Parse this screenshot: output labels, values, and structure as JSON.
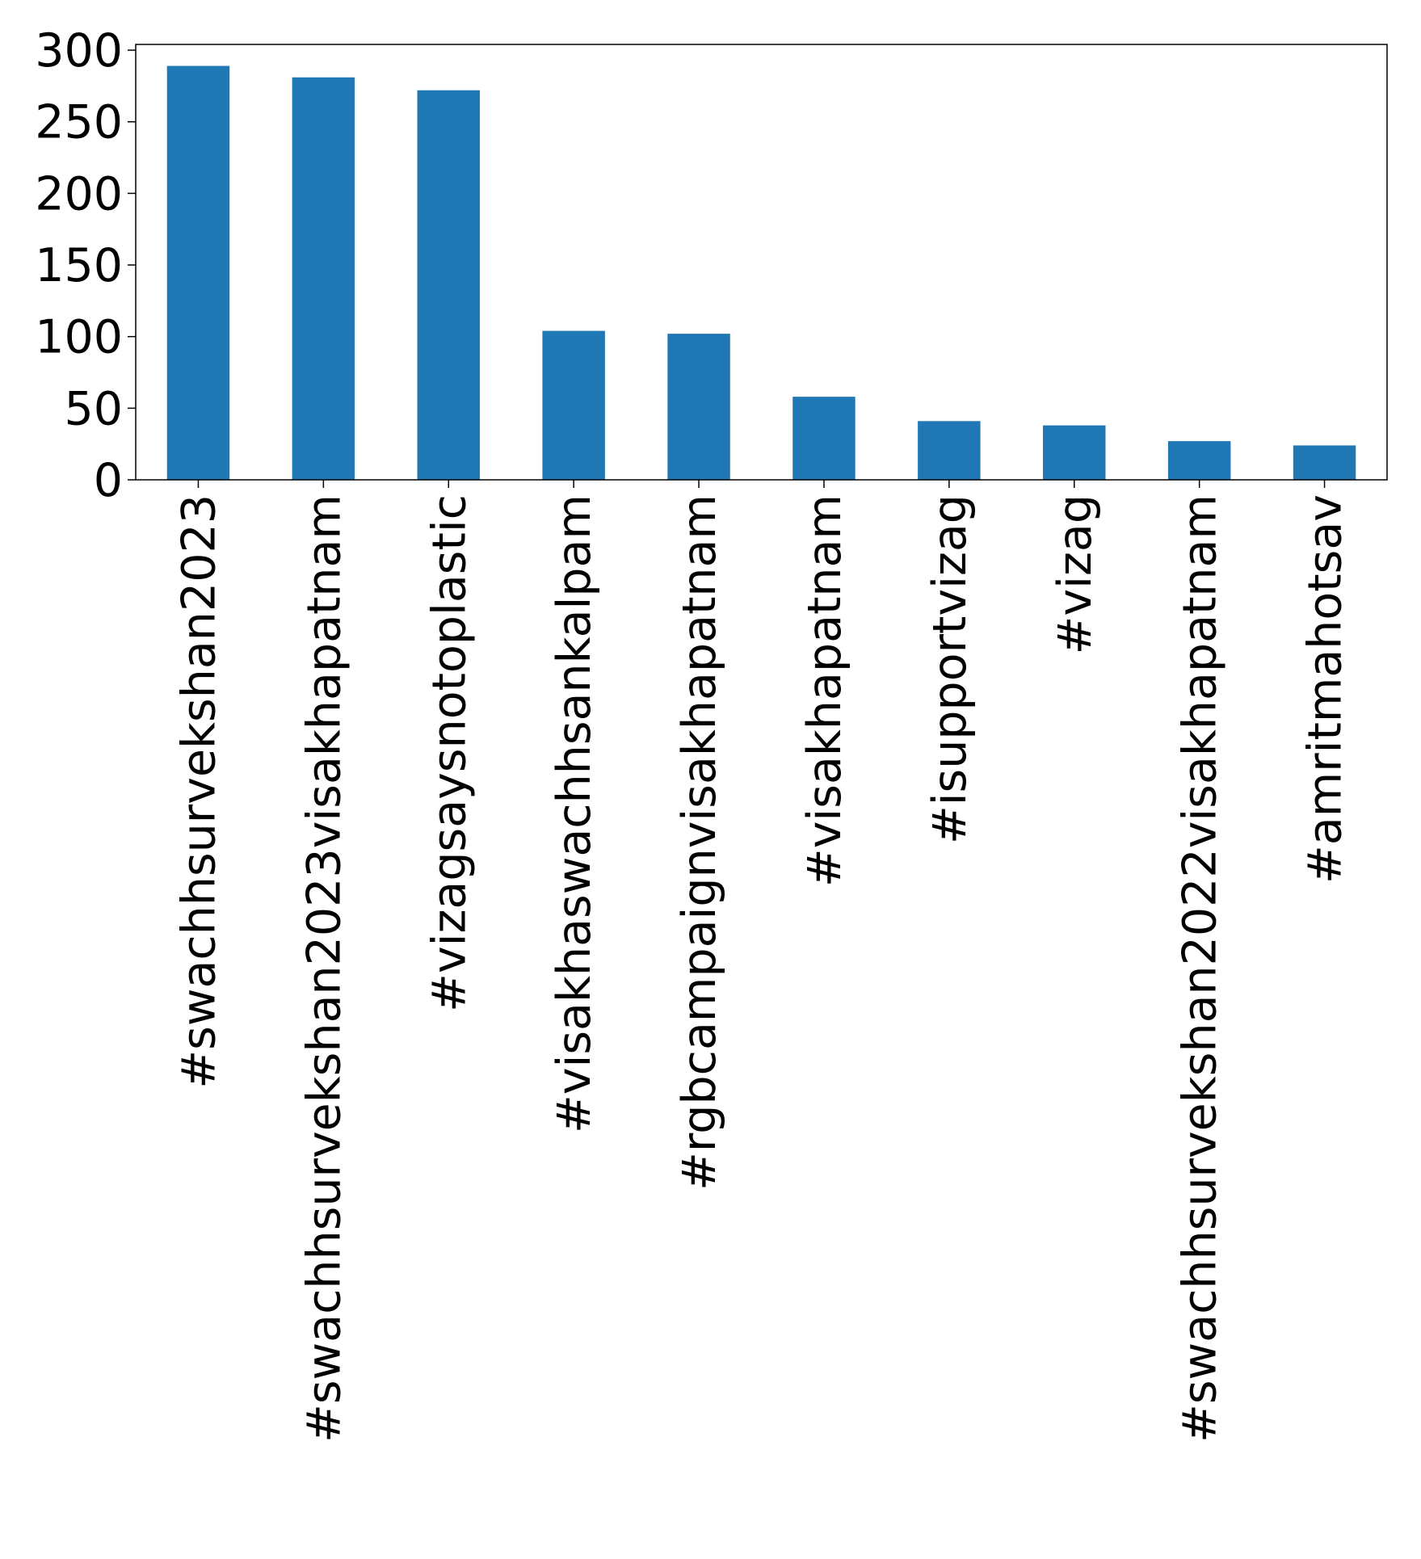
{
  "chart_data": {
    "type": "bar",
    "categories": [
      "#swachhsurvekshan2023",
      "#swachhsurvekshan2023visakhapatnam",
      "#vizagsaysnotoplastic",
      "#visakhaswachhsankalpam",
      "#rgbcampaignvisakhapatnam",
      "#visakhapatnam",
      "#isupportvizag",
      "#vizag",
      "#swachhsurvekshan2022visakhapatnam",
      "#amritmahotsav"
    ],
    "values": [
      289,
      281,
      272,
      104,
      102,
      58,
      41,
      38,
      27,
      24
    ],
    "yticks": [
      "0",
      "50",
      "100",
      "150",
      "200",
      "250",
      "300"
    ],
    "ylim": [
      0,
      304
    ],
    "title": "",
    "xlabel": "",
    "ylabel": "",
    "bar_color": "#1f77b4",
    "grid": false,
    "legend": "none"
  }
}
